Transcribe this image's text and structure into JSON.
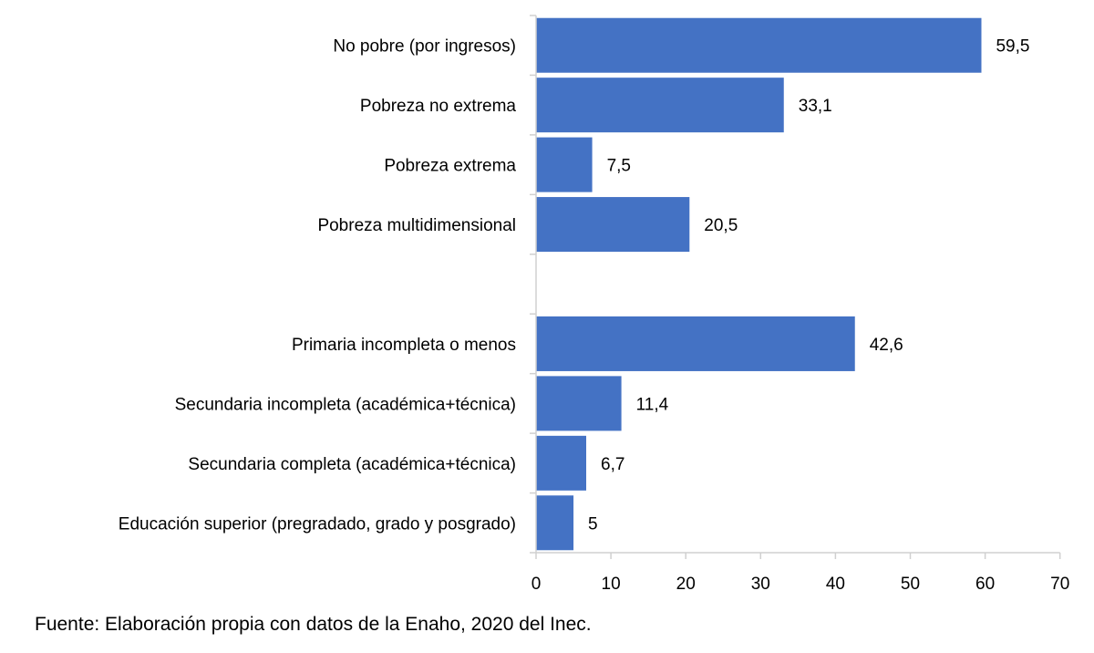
{
  "chart_data": {
    "type": "bar",
    "orientation": "horizontal",
    "categories": [
      "No pobre (por ingresos)",
      "Pobreza no extrema",
      "Pobreza extrema",
      "Pobreza multidimensional",
      "",
      "Primaria incompleta o menos",
      "Secundaria incompleta (académica+técnica)",
      "Secundaria completa  (académica+técnica)",
      "Educación superior (pregradado, grado y posgrado)"
    ],
    "values": [
      59.5,
      33.1,
      7.5,
      20.5,
      null,
      42.6,
      11.4,
      6.7,
      5
    ],
    "value_labels": [
      "59,5",
      "33,1",
      "7,5",
      "20,5",
      "",
      "42,6",
      "11,4",
      "6,7",
      "5"
    ],
    "xlim": [
      0,
      70
    ],
    "xticks": [
      0,
      10,
      20,
      30,
      40,
      50,
      60,
      70
    ],
    "bar_color": "#4472C4",
    "grid": false,
    "legend": "none"
  },
  "source_note": "Fuente: Elaboración propia con datos de la Enaho, 2020 del Inec."
}
